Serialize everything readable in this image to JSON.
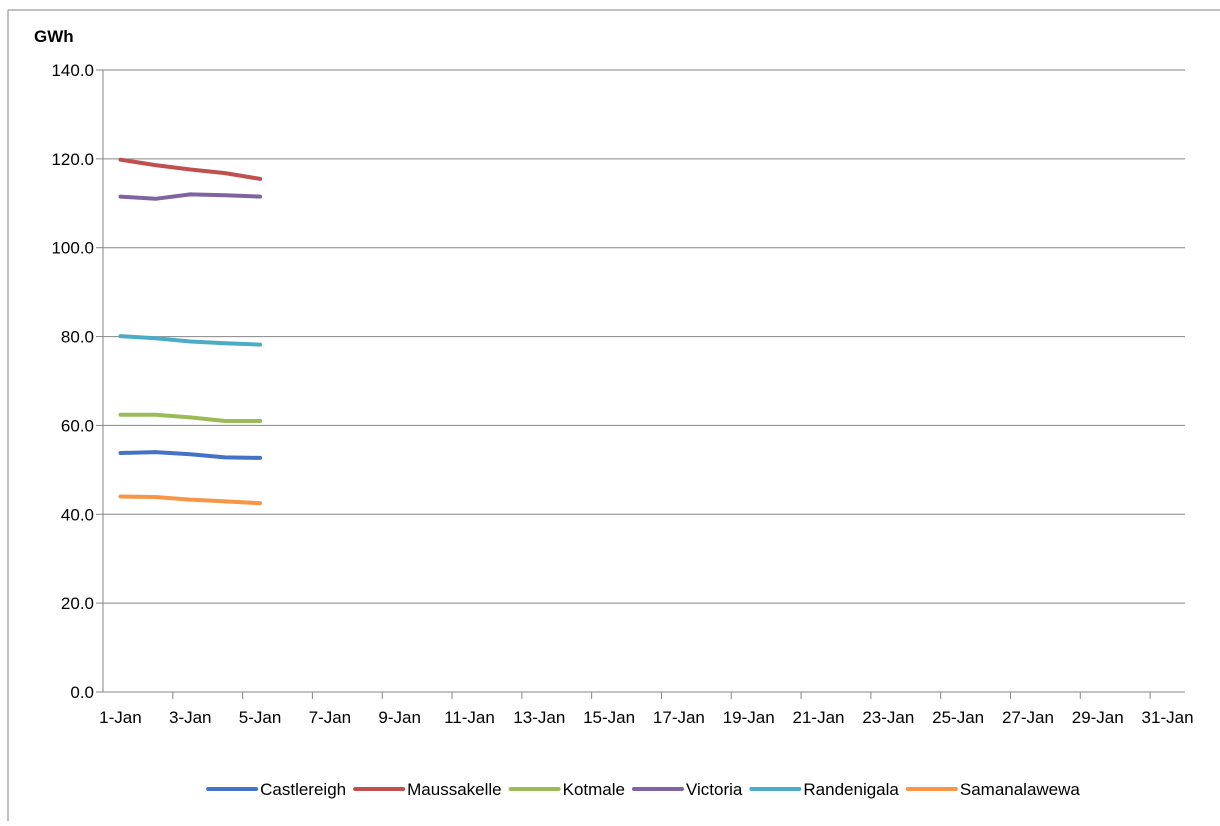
{
  "chart_data": {
    "type": "line",
    "ylabel": "GWh",
    "ylim": [
      0,
      140
    ],
    "y_ticks": [
      "0.0",
      "20.0",
      "40.0",
      "60.0",
      "80.0",
      "100.0",
      "120.0",
      "140.0"
    ],
    "x_categories": [
      "1-Jan",
      "2-Jan",
      "3-Jan",
      "4-Jan",
      "5-Jan",
      "6-Jan",
      "7-Jan",
      "8-Jan",
      "9-Jan",
      "10-Jan",
      "11-Jan",
      "12-Jan",
      "13-Jan",
      "14-Jan",
      "15-Jan",
      "16-Jan",
      "17-Jan",
      "18-Jan",
      "19-Jan",
      "20-Jan",
      "21-Jan",
      "22-Jan",
      "23-Jan",
      "24-Jan",
      "25-Jan",
      "26-Jan",
      "27-Jan",
      "28-Jan",
      "29-Jan",
      "30-Jan",
      "31-Jan"
    ],
    "x_tick_labels": [
      "1-Jan",
      "3-Jan",
      "5-Jan",
      "7-Jan",
      "9-Jan",
      "11-Jan",
      "13-Jan",
      "15-Jan",
      "17-Jan",
      "19-Jan",
      "21-Jan",
      "23-Jan",
      "25-Jan",
      "27-Jan",
      "29-Jan",
      "31-Jan"
    ],
    "grid": "horizontal",
    "legend_position": "bottom",
    "series": [
      {
        "name": "Castlereigh",
        "color": "#4472C4",
        "values": [
          53.8,
          54.0,
          53.5,
          52.8,
          52.7
        ]
      },
      {
        "name": "Maussakelle",
        "color": "#C0504D",
        "values": [
          119.8,
          118.6,
          117.6,
          116.8,
          115.5
        ]
      },
      {
        "name": "Kotmale",
        "color": "#9BBB59",
        "values": [
          62.4,
          62.4,
          61.8,
          61.0,
          61.0
        ]
      },
      {
        "name": "Victoria",
        "color": "#8064A2",
        "values": [
          111.5,
          111.0,
          112.0,
          111.8,
          111.5
        ]
      },
      {
        "name": "Randenigala",
        "color": "#4BACC6",
        "values": [
          80.1,
          79.6,
          78.9,
          78.5,
          78.2
        ]
      },
      {
        "name": "Samanalawewa",
        "color": "#F79646",
        "values": [
          44.0,
          43.9,
          43.3,
          42.9,
          42.5
        ]
      }
    ]
  }
}
